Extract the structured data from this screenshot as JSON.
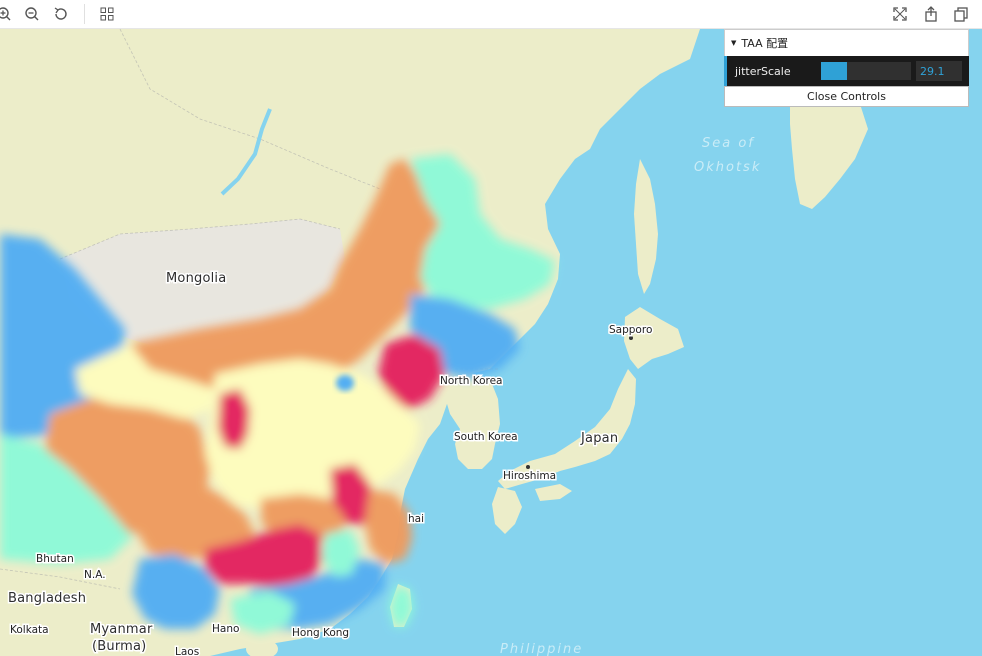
{
  "toolbar": {
    "left_icons": [
      "zoom-in-icon",
      "zoom-out-icon",
      "reset-icon",
      "grid-icon"
    ],
    "right_icons": [
      "fullscreen-icon",
      "share-icon",
      "copy-icon"
    ]
  },
  "map": {
    "colors": {
      "ocean": "#85d3ee",
      "land": "#ecedc9",
      "land_light": "#e8e6df",
      "heat_blue": "#52aef3",
      "heat_cyan": "#8efad8",
      "heat_yellow": "#fefdbe",
      "heat_orange": "#ef9b5e",
      "heat_red": "#e3245e"
    },
    "labels": {
      "mongolia": "Mongolia",
      "north_korea": "North Korea",
      "south_korea": "South Korea",
      "japan": "Japan",
      "sapporo": "Sapporo",
      "hiroshima": "Hiroshima",
      "sea_of_1": "Sea of",
      "sea_of_2": "Okhotsk",
      "shanghai": "hai",
      "bhutan": "Bhutan",
      "bangladesh": "Bangladesh",
      "kolkata": "Kolkata",
      "myanmar": "Myanmar",
      "burma": "(Burma)",
      "hanoi": "Hano",
      "hong_kong": "Hong Kong",
      "laos": "Laos",
      "philippine": "Philippine",
      "n_a": "N.A."
    }
  },
  "controls": {
    "title": "TAA 配置",
    "param_label": "jitterScale",
    "param_value": "29.1",
    "param_fraction": 0.29,
    "close_label": "Close Controls",
    "accent": "#2fa1d6"
  }
}
